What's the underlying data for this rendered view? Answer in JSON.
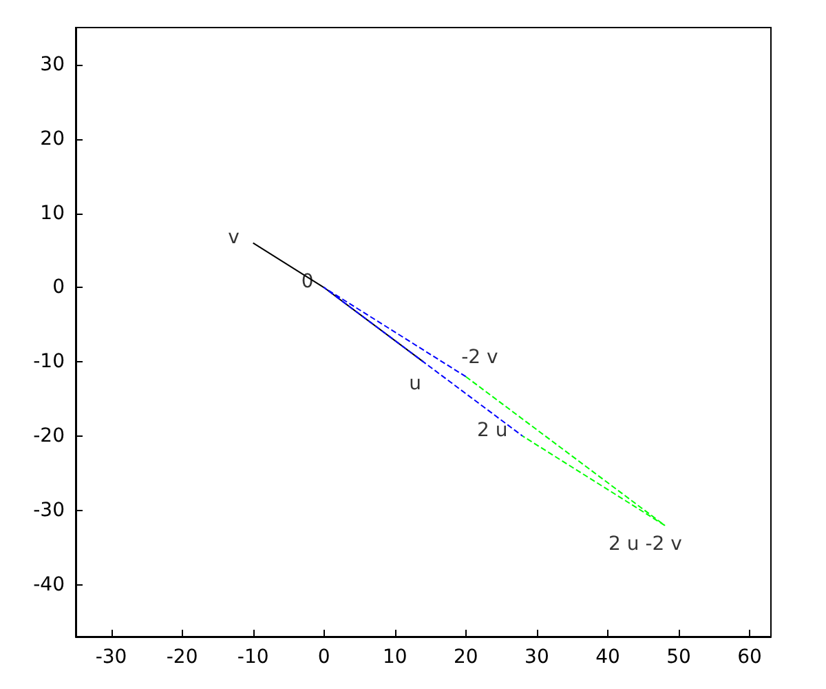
{
  "chart_data": {
    "type": "line",
    "xlim": [
      -35,
      63
    ],
    "ylim": [
      -47,
      35
    ],
    "xticks": [
      -30,
      -20,
      -10,
      0,
      10,
      20,
      30,
      40,
      50,
      60
    ],
    "yticks": [
      -40,
      -30,
      -20,
      -10,
      0,
      10,
      20,
      30
    ],
    "grid": false,
    "marker": "none",
    "series": [
      {
        "color": "#000000",
        "line_style": "solid",
        "x": [
          -10,
          0,
          14
        ],
        "values": [
          6,
          0,
          -10
        ]
      },
      {
        "color": "#0000ff",
        "line_style": "dashed",
        "x": [
          20,
          0,
          28
        ],
        "values": [
          -12,
          0,
          -20
        ]
      },
      {
        "color": "#00ff00",
        "line_style": "dashed",
        "x": [
          20,
          48,
          28
        ],
        "values": [
          -12,
          -32,
          -20
        ]
      }
    ],
    "annotations": [
      {
        "text": "v",
        "x": -10,
        "y": 6
      },
      {
        "text": "0",
        "x": 0,
        "y": 0
      },
      {
        "text": "u",
        "x": 14,
        "y": -10
      },
      {
        "text": "-2 v",
        "x": 20,
        "y": -12
      },
      {
        "text": "2 u",
        "x": 28,
        "y": -20
      },
      {
        "text": "2 u -2 v",
        "x": 48,
        "y": -32
      }
    ]
  }
}
